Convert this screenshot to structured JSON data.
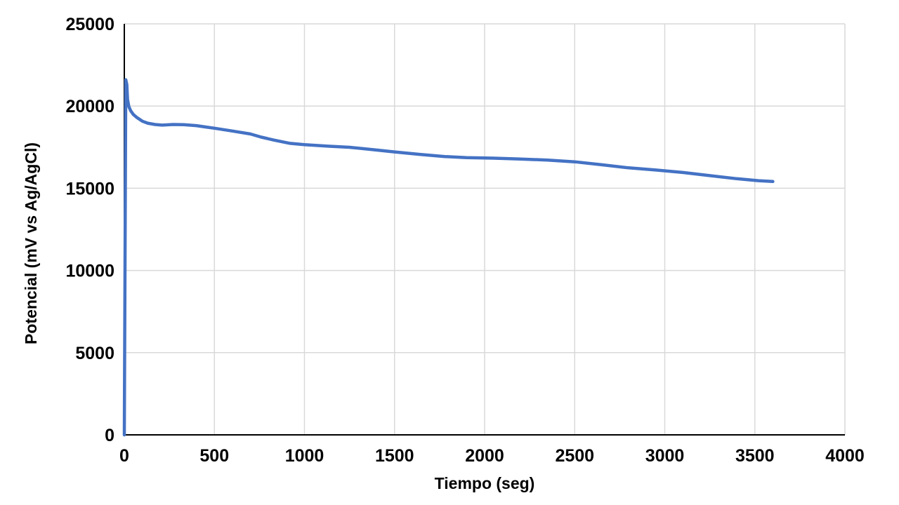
{
  "chart": {
    "background": "#ffffff",
    "line_color": "#4472C4",
    "grid_color": "#D9D9D9",
    "axis_color": "#000000",
    "text_color": "#000000"
  },
  "chart_data": {
    "type": "line",
    "title": "",
    "xlabel": "Tiempo (seg)",
    "ylabel": "Potencial (mV vs Ag/AgCl)",
    "xlim": [
      0,
      4000
    ],
    "ylim": [
      0,
      25000
    ],
    "x_ticks": [
      0,
      500,
      1000,
      1500,
      2000,
      2500,
      3000,
      3500,
      4000
    ],
    "y_ticks": [
      0,
      5000,
      10000,
      15000,
      20000,
      25000
    ],
    "grid": true,
    "legend": false,
    "series": [
      {
        "name": "Potencial",
        "color": "#4472C4",
        "points": [
          [
            0,
            0
          ],
          [
            8,
            21600
          ],
          [
            14,
            21300
          ],
          [
            18,
            20400
          ],
          [
            25,
            19980
          ],
          [
            35,
            19720
          ],
          [
            50,
            19490
          ],
          [
            70,
            19300
          ],
          [
            100,
            19080
          ],
          [
            130,
            18960
          ],
          [
            170,
            18880
          ],
          [
            210,
            18840
          ],
          [
            270,
            18880
          ],
          [
            330,
            18870
          ],
          [
            400,
            18810
          ],
          [
            450,
            18730
          ],
          [
            500,
            18650
          ],
          [
            600,
            18480
          ],
          [
            700,
            18300
          ],
          [
            760,
            18110
          ],
          [
            830,
            17930
          ],
          [
            920,
            17730
          ],
          [
            1000,
            17650
          ],
          [
            1130,
            17560
          ],
          [
            1250,
            17490
          ],
          [
            1390,
            17340
          ],
          [
            1500,
            17210
          ],
          [
            1640,
            17060
          ],
          [
            1780,
            16930
          ],
          [
            1900,
            16860
          ],
          [
            2050,
            16830
          ],
          [
            2200,
            16780
          ],
          [
            2350,
            16710
          ],
          [
            2500,
            16610
          ],
          [
            2650,
            16430
          ],
          [
            2800,
            16240
          ],
          [
            2950,
            16110
          ],
          [
            3100,
            15960
          ],
          [
            3250,
            15770
          ],
          [
            3400,
            15580
          ],
          [
            3520,
            15460
          ],
          [
            3600,
            15410
          ]
        ]
      }
    ]
  }
}
